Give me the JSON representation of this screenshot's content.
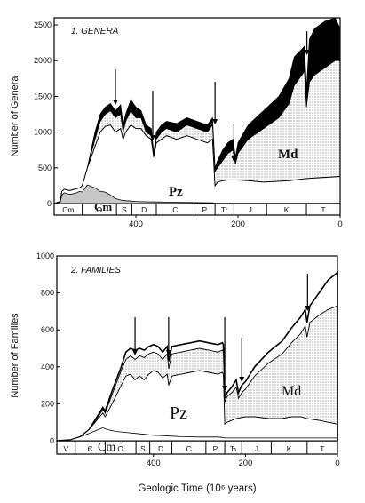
{
  "chart_data": [
    {
      "type": "area",
      "panel_title": "1. GENERA",
      "xlabel": "",
      "ylabel": "Number of Genera",
      "x_axis": "Geologic time (Ma), decreasing to the right",
      "xlim": [
        560,
        0
      ],
      "ylim": [
        0,
        2600
      ],
      "yticks": [
        0,
        500,
        1000,
        1500,
        2000,
        2500
      ],
      "xticks": [
        400,
        200,
        0
      ],
      "periods": [
        {
          "label": "Cm",
          "start": 560,
          "end": 505
        },
        {
          "label": "O",
          "start": 505,
          "end": 438
        },
        {
          "label": "S",
          "start": 438,
          "end": 408
        },
        {
          "label": "D",
          "start": 408,
          "end": 360
        },
        {
          "label": "C",
          "start": 360,
          "end": 286
        },
        {
          "label": "P",
          "start": 286,
          "end": 245
        },
        {
          "label": "Tr",
          "start": 245,
          "end": 208
        },
        {
          "label": "J",
          "start": 208,
          "end": 144
        },
        {
          "label": "K",
          "start": 144,
          "end": 66
        },
        {
          "label": "T",
          "start": 66,
          "end": 0
        }
      ],
      "series": [
        {
          "name": "Cm",
          "fill": "#c7c7c7",
          "x": [
            560,
            548,
            545,
            540,
            530,
            520,
            510,
            505,
            495,
            480,
            470,
            460,
            450,
            440,
            430,
            420,
            410,
            400,
            380,
            360,
            340,
            300,
            250,
            245,
            200,
            150,
            100,
            50,
            0
          ],
          "y": [
            0,
            20,
            120,
            150,
            130,
            140,
            170,
            160,
            260,
            220,
            170,
            160,
            120,
            70,
            50,
            40,
            35,
            30,
            25,
            22,
            20,
            15,
            10,
            5,
            5,
            5,
            5,
            5,
            5
          ]
        },
        {
          "name": "Pz",
          "fill": "#ffffff",
          "x": [
            560,
            548,
            545,
            540,
            530,
            520,
            510,
            505,
            495,
            480,
            470,
            460,
            450,
            440,
            430,
            425,
            420,
            410,
            400,
            390,
            380,
            370,
            365,
            360,
            350,
            340,
            320,
            300,
            280,
            260,
            250,
            245,
            240,
            230,
            220,
            210,
            200,
            180,
            150,
            100,
            66,
            0
          ],
          "y": [
            0,
            30,
            170,
            200,
            180,
            200,
            220,
            250,
            500,
            800,
            1000,
            1080,
            1100,
            1000,
            1050,
            900,
            1000,
            1100,
            1050,
            1050,
            950,
            900,
            650,
            850,
            900,
            950,
            900,
            950,
            900,
            850,
            900,
            250,
            300,
            320,
            330,
            330,
            330,
            320,
            300,
            320,
            350,
            380
          ]
        },
        {
          "name": "Md",
          "fill": "#e2e2e2",
          "x": [
            560,
            548,
            545,
            540,
            530,
            520,
            510,
            505,
            495,
            480,
            470,
            460,
            450,
            440,
            430,
            425,
            420,
            410,
            400,
            390,
            380,
            370,
            365,
            360,
            350,
            340,
            320,
            300,
            280,
            260,
            250,
            245,
            240,
            230,
            220,
            210,
            205,
            200,
            180,
            150,
            120,
            100,
            90,
            70,
            66,
            60,
            50,
            30,
            10,
            0
          ],
          "y": [
            0,
            30,
            170,
            200,
            180,
            200,
            220,
            250,
            500,
            900,
            1150,
            1250,
            1300,
            1200,
            1250,
            1000,
            1150,
            1300,
            1200,
            1200,
            1000,
            950,
            650,
            900,
            1000,
            1050,
            1000,
            1100,
            1050,
            1000,
            1100,
            450,
            500,
            600,
            700,
            750,
            550,
            700,
            900,
            1050,
            1200,
            1400,
            1650,
            1850,
            1350,
            1700,
            1800,
            1900,
            2000,
            2000
          ]
        },
        {
          "name": "",
          "fill": "#000000",
          "x": [
            560,
            548,
            545,
            540,
            530,
            520,
            510,
            505,
            495,
            480,
            470,
            460,
            450,
            440,
            430,
            425,
            420,
            410,
            400,
            390,
            380,
            370,
            365,
            360,
            350,
            340,
            320,
            300,
            280,
            260,
            250,
            245,
            240,
            230,
            220,
            210,
            205,
            200,
            180,
            150,
            120,
            100,
            90,
            70,
            66,
            60,
            50,
            30,
            10,
            0
          ],
          "y": [
            0,
            30,
            170,
            200,
            180,
            200,
            220,
            250,
            500,
            1000,
            1250,
            1350,
            1400,
            1300,
            1380,
            1100,
            1250,
            1450,
            1350,
            1300,
            1100,
            1050,
            700,
            1000,
            1100,
            1150,
            1120,
            1200,
            1150,
            1100,
            1200,
            500,
            600,
            750,
            850,
            900,
            650,
            850,
            1100,
            1300,
            1500,
            1750,
            2050,
            2200,
            1600,
            2300,
            2450,
            2550,
            2600,
            2450
          ]
        }
      ],
      "labels": [
        "Cm",
        "Pz",
        "Md"
      ],
      "extinction_arrows_ma": [
        440,
        367,
        245,
        208,
        65
      ]
    },
    {
      "type": "line",
      "panel_title": "2. FAMILIES",
      "xlabel": "Geologic Time (10⁶ years)",
      "ylabel": "Number of Families",
      "x_axis": "Geologic time (Ma), decreasing to the right",
      "xlim": [
        610,
        0
      ],
      "ylim": [
        0,
        1000
      ],
      "yticks": [
        0,
        200,
        400,
        600,
        800,
        1000
      ],
      "xticks": [
        400,
        200,
        0
      ],
      "periods": [
        {
          "label": "V",
          "start": 610,
          "end": 570
        },
        {
          "label": "Є",
          "start": 570,
          "end": 505
        },
        {
          "label": "O",
          "start": 505,
          "end": 438
        },
        {
          "label": "S",
          "start": 438,
          "end": 408
        },
        {
          "label": "D",
          "start": 408,
          "end": 360
        },
        {
          "label": "C",
          "start": 360,
          "end": 286
        },
        {
          "label": "P",
          "start": 286,
          "end": 245
        },
        {
          "label": "Ћ",
          "start": 245,
          "end": 208
        },
        {
          "label": "J",
          "start": 208,
          "end": 144
        },
        {
          "label": "K",
          "start": 144,
          "end": 66
        },
        {
          "label": "T",
          "start": 66,
          "end": 0
        }
      ],
      "series": [
        {
          "name": "Cm",
          "x": [
            610,
            580,
            560,
            540,
            520,
            510,
            500,
            480,
            460,
            440,
            420,
            400,
            380,
            360,
            340,
            300,
            260,
            250,
            245,
            200,
            150,
            100,
            50,
            0
          ],
          "y": [
            0,
            5,
            20,
            40,
            60,
            70,
            60,
            50,
            45,
            40,
            35,
            30,
            28,
            25,
            22,
            20,
            20,
            18,
            15,
            15,
            15,
            15,
            15,
            15
          ]
        },
        {
          "name": "Pz",
          "x": [
            610,
            580,
            560,
            540,
            520,
            510,
            505,
            490,
            470,
            460,
            450,
            440,
            430,
            420,
            410,
            400,
            390,
            380,
            370,
            367,
            360,
            340,
            320,
            300,
            280,
            260,
            250,
            248,
            245,
            240,
            230,
            220,
            200,
            180,
            150,
            120,
            100,
            80,
            66,
            40,
            20,
            0
          ],
          "y": [
            0,
            5,
            20,
            60,
            120,
            150,
            130,
            200,
            300,
            350,
            360,
            330,
            350,
            330,
            360,
            380,
            370,
            340,
            360,
            300,
            350,
            360,
            370,
            380,
            370,
            360,
            370,
            360,
            90,
            100,
            110,
            120,
            130,
            130,
            120,
            120,
            130,
            130,
            120,
            110,
            100,
            90
          ]
        },
        {
          "name": "Md",
          "x": [
            610,
            580,
            560,
            540,
            520,
            510,
            505,
            490,
            470,
            460,
            450,
            440,
            430,
            420,
            410,
            400,
            390,
            380,
            370,
            367,
            360,
            340,
            320,
            300,
            280,
            260,
            250,
            248,
            245,
            240,
            230,
            220,
            215,
            208,
            200,
            180,
            150,
            120,
            100,
            80,
            70,
            66,
            60,
            40,
            20,
            0
          ],
          "y": [
            0,
            5,
            20,
            60,
            130,
            170,
            150,
            250,
            380,
            440,
            460,
            440,
            460,
            450,
            470,
            480,
            470,
            440,
            470,
            390,
            470,
            480,
            490,
            500,
            490,
            480,
            490,
            480,
            210,
            240,
            260,
            290,
            230,
            260,
            280,
            350,
            420,
            470,
            530,
            580,
            620,
            560,
            640,
            680,
            710,
            730
          ]
        },
        {
          "name": "",
          "x": [
            610,
            580,
            560,
            540,
            520,
            510,
            505,
            490,
            470,
            460,
            450,
            440,
            430,
            420,
            410,
            400,
            390,
            380,
            370,
            367,
            360,
            340,
            320,
            300,
            280,
            260,
            250,
            248,
            245,
            240,
            230,
            220,
            215,
            208,
            200,
            180,
            150,
            120,
            100,
            80,
            70,
            66,
            60,
            40,
            20,
            0
          ],
          "y": [
            0,
            5,
            20,
            60,
            140,
            180,
            160,
            270,
            400,
            480,
            500,
            490,
            500,
            490,
            510,
            520,
            510,
            480,
            510,
            430,
            510,
            520,
            530,
            540,
            530,
            520,
            530,
            520,
            230,
            260,
            290,
            330,
            260,
            300,
            320,
            400,
            480,
            540,
            610,
            670,
            710,
            640,
            730,
            800,
            870,
            910
          ]
        }
      ],
      "labels": [
        "Cm",
        "Pz",
        "Md"
      ],
      "extinction_arrows_ma": [
        440,
        367,
        245,
        208,
        65
      ]
    }
  ]
}
